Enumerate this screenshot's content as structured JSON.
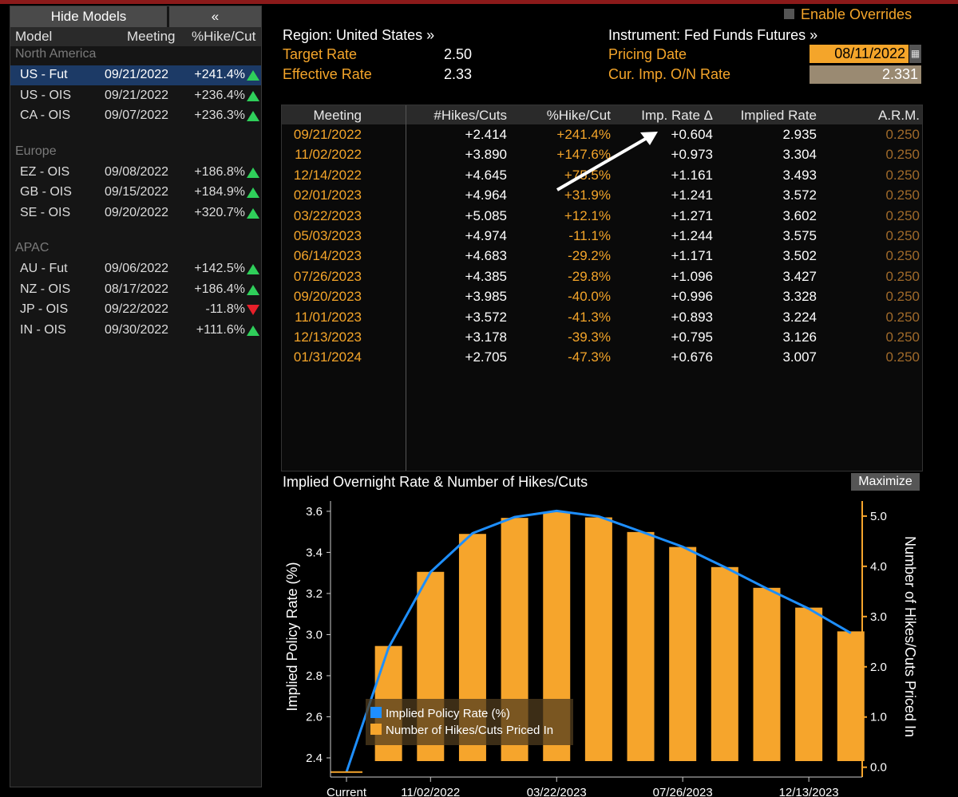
{
  "left_panel": {
    "hide_models_label": "Hide Models",
    "collapse_label": "«",
    "headers": {
      "model": "Model",
      "meeting": "Meeting",
      "hike_cut": "%Hike/Cut"
    },
    "groups": [
      {
        "name": "North America",
        "rows": [
          {
            "model": "US - Fut",
            "meeting": "09/21/2022",
            "pct": "+241.4%",
            "dir": "up",
            "selected": true
          },
          {
            "model": "US - OIS",
            "meeting": "09/21/2022",
            "pct": "+236.4%",
            "dir": "up"
          },
          {
            "model": "CA - OIS",
            "meeting": "09/07/2022",
            "pct": "+236.3%",
            "dir": "up"
          }
        ]
      },
      {
        "name": "Europe",
        "rows": [
          {
            "model": "EZ - OIS",
            "meeting": "09/08/2022",
            "pct": "+186.8%",
            "dir": "up"
          },
          {
            "model": "GB - OIS",
            "meeting": "09/15/2022",
            "pct": "+184.9%",
            "dir": "up"
          },
          {
            "model": "SE - OIS",
            "meeting": "09/20/2022",
            "pct": "+320.7%",
            "dir": "up"
          }
        ]
      },
      {
        "name": "APAC",
        "rows": [
          {
            "model": "AU - Fut",
            "meeting": "09/06/2022",
            "pct": "+142.5%",
            "dir": "up"
          },
          {
            "model": "NZ - OIS",
            "meeting": "08/17/2022",
            "pct": "+186.4%",
            "dir": "up"
          },
          {
            "model": "JP - OIS",
            "meeting": "09/22/2022",
            "pct": "-11.8%",
            "dir": "down"
          },
          {
            "model": "IN - OIS",
            "meeting": "09/30/2022",
            "pct": "+111.6%",
            "dir": "up"
          }
        ]
      }
    ]
  },
  "header": {
    "enable_overrides": "Enable Overrides",
    "region": "Region: United States »",
    "instrument": "Instrument: Fed Funds Futures »",
    "target_rate_label": "Target Rate",
    "target_rate_value": "2.50",
    "effective_rate_label": "Effective Rate",
    "effective_rate_value": "2.33",
    "pricing_date_label": "Pricing Date",
    "pricing_date_value": "08/11/2022",
    "cur_imp_label": "Cur. Imp. O/N Rate",
    "cur_imp_value": "2.331"
  },
  "table": {
    "columns": [
      "Meeting",
      "#Hikes/Cuts",
      "%Hike/Cut",
      "Imp. Rate Δ",
      "Implied Rate",
      "A.R.M."
    ],
    "rows": [
      [
        "09/21/2022",
        "+2.414",
        "+241.4%",
        "+0.604",
        "2.935",
        "0.250"
      ],
      [
        "11/02/2022",
        "+3.890",
        "+147.6%",
        "+0.973",
        "3.304",
        "0.250"
      ],
      [
        "12/14/2022",
        "+4.645",
        "+75.5%",
        "+1.161",
        "3.493",
        "0.250"
      ],
      [
        "02/01/2023",
        "+4.964",
        "+31.9%",
        "+1.241",
        "3.572",
        "0.250"
      ],
      [
        "03/22/2023",
        "+5.085",
        "+12.1%",
        "+1.271",
        "3.602",
        "0.250"
      ],
      [
        "05/03/2023",
        "+4.974",
        "-11.1%",
        "+1.244",
        "3.575",
        "0.250"
      ],
      [
        "06/14/2023",
        "+4.683",
        "-29.2%",
        "+1.171",
        "3.502",
        "0.250"
      ],
      [
        "07/26/2023",
        "+4.385",
        "-29.8%",
        "+1.096",
        "3.427",
        "0.250"
      ],
      [
        "09/20/2023",
        "+3.985",
        "-40.0%",
        "+0.996",
        "3.328",
        "0.250"
      ],
      [
        "11/01/2023",
        "+3.572",
        "-41.3%",
        "+0.893",
        "3.224",
        "0.250"
      ],
      [
        "12/13/2023",
        "+3.178",
        "-39.3%",
        "+0.795",
        "3.126",
        "0.250"
      ],
      [
        "01/31/2024",
        "+2.705",
        "-47.3%",
        "+0.676",
        "3.007",
        "0.250"
      ]
    ]
  },
  "chart_title": "Implied Overnight Rate & Number of Hikes/Cuts",
  "maximize_label": "Maximize",
  "chart_data": {
    "type": "bar",
    "title": "Implied Overnight Rate & Number of Hikes/Cuts",
    "categories": [
      "Current",
      "09/21/2022",
      "11/02/2022",
      "12/14/2022",
      "02/01/2023",
      "03/22/2023",
      "05/03/2023",
      "06/14/2023",
      "07/26/2023",
      "09/20/2023",
      "11/01/2023",
      "12/13/2023",
      "01/31/2024"
    ],
    "x_tick_labels": [
      "Current",
      "11/02/2022",
      "03/22/2023",
      "07/26/2023",
      "12/13/2023"
    ],
    "ylabel": "Implied Policy Rate (%)",
    "y2label": "Number of Hikes/Cuts Priced In",
    "ylim": [
      2.33,
      3.65
    ],
    "y2lim": [
      -0.1,
      5.3
    ],
    "y_ticks": [
      2.4,
      2.6,
      2.8,
      3.0,
      3.2,
      3.4,
      3.6
    ],
    "y2_ticks": [
      0.0,
      1.0,
      2.0,
      3.0,
      4.0,
      5.0
    ],
    "series": [
      {
        "name": "Implied Policy Rate (%)",
        "type": "line",
        "color": "#1e8fff",
        "values": [
          2.331,
          2.935,
          3.304,
          3.493,
          3.572,
          3.602,
          3.575,
          3.502,
          3.427,
          3.328,
          3.224,
          3.126,
          3.007
        ]
      },
      {
        "name": "Number of Hikes/Cuts Priced In",
        "type": "bar",
        "color": "#f6a52c",
        "values": [
          0,
          2.414,
          3.89,
          4.645,
          4.964,
          5.085,
          4.974,
          4.683,
          4.385,
          3.985,
          3.572,
          3.178,
          2.705
        ]
      }
    ],
    "legend_position": "bottom-left"
  },
  "colors": {
    "accent": "#f4a52a",
    "line": "#1e8fff",
    "bar": "#f6a52c",
    "selected": "#1c3a66"
  }
}
